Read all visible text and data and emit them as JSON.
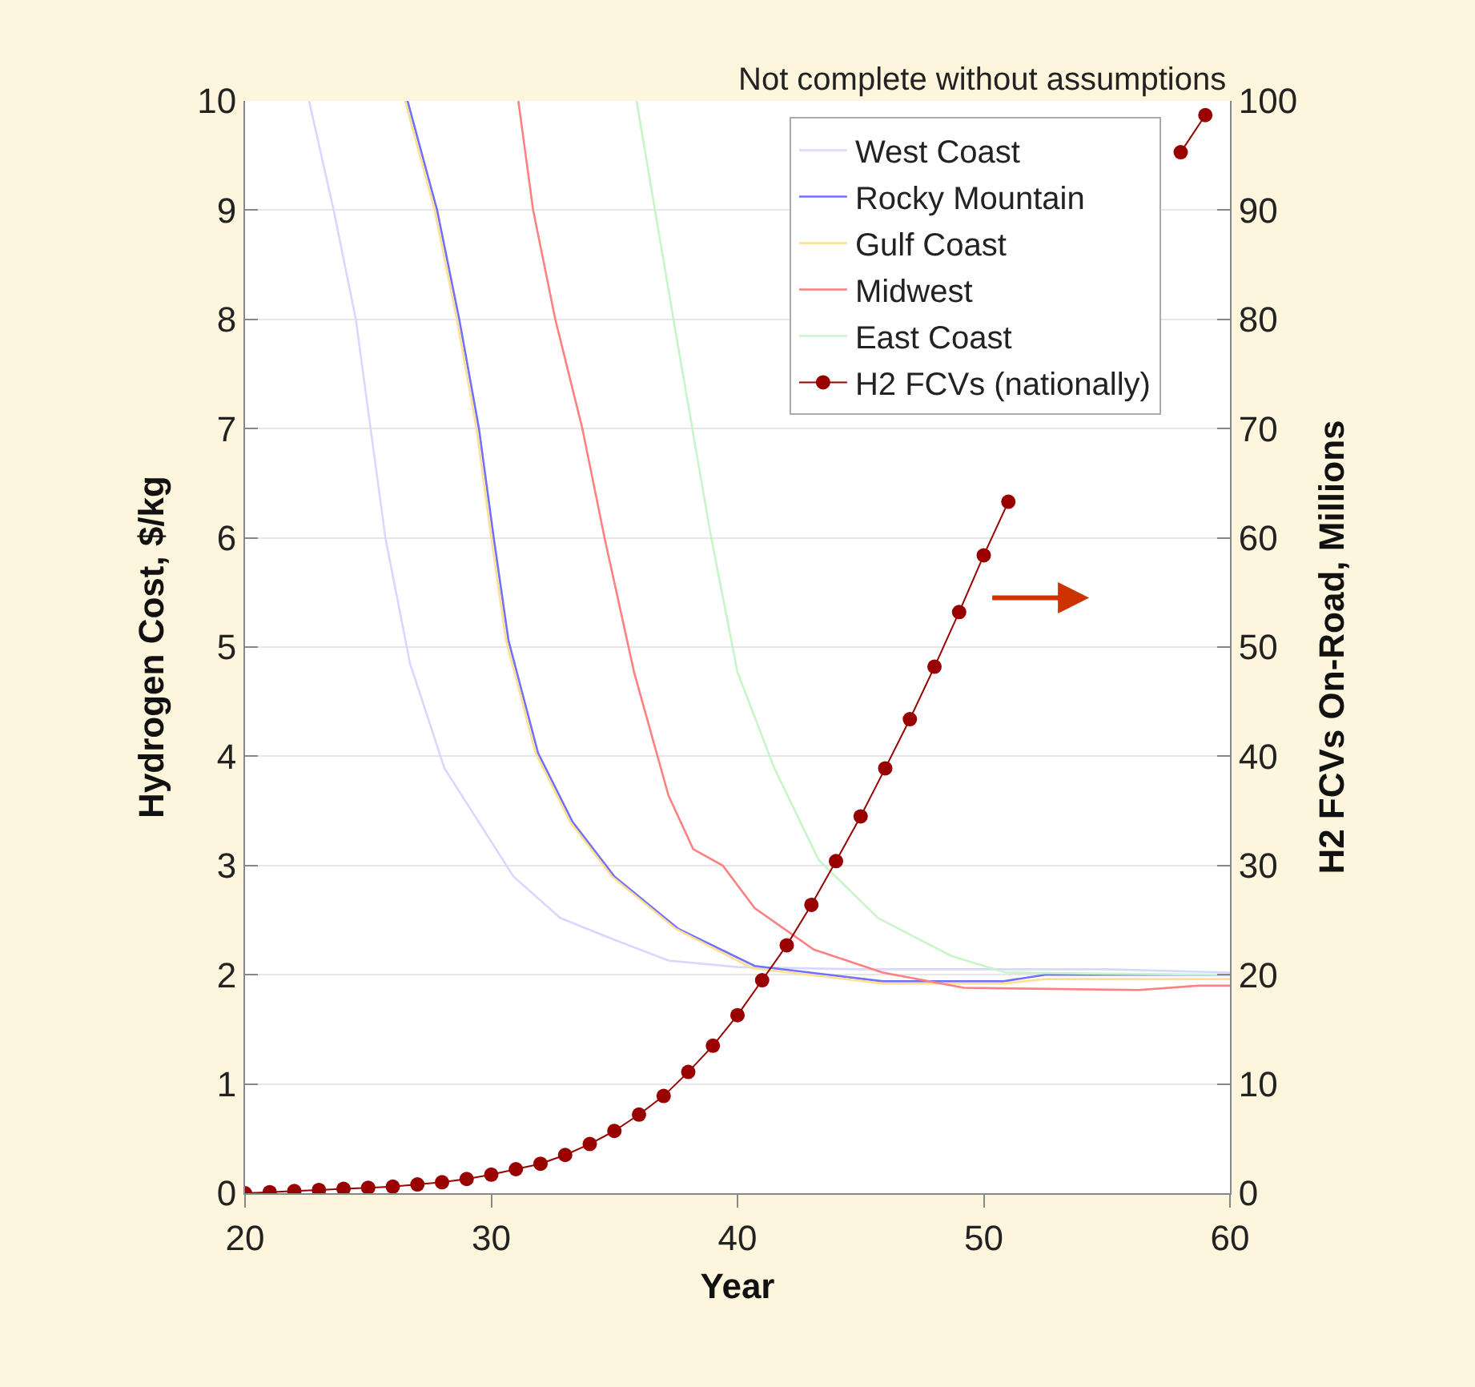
{
  "chart_data": {
    "type": "line",
    "xlabel": "Year",
    "ylabel": "Hydrogen Cost, $/kg",
    "y2label": "H2 FCVs On-Road, Millions",
    "annotations": [
      "Not complete without assumptions"
    ],
    "xlim": [
      20,
      60
    ],
    "xticks": [
      20,
      30,
      40,
      50,
      60
    ],
    "ylim": [
      0,
      10
    ],
    "yticks": [
      0,
      1,
      2,
      3,
      4,
      5,
      6,
      7,
      8,
      9,
      10
    ],
    "y2lim": [
      0,
      100
    ],
    "y2ticks": [
      0,
      10,
      20,
      30,
      40,
      50,
      60,
      70,
      80,
      90,
      100
    ],
    "grid": "y",
    "legend": "top right",
    "line_style": "solid",
    "series": [
      {
        "name": "West Coast",
        "color": "#d8d8ff",
        "marker": "none",
        "x": [
          22.6,
          23.6,
          24.5,
          25.1,
          25.7,
          26.7,
          28.1,
          30.9,
          32.8,
          35.0,
          37.2,
          40.0,
          45,
          50,
          55,
          60
        ],
        "values": [
          10,
          9,
          8,
          7,
          6,
          4.85,
          3.89,
          2.9,
          2.52,
          2.32,
          2.13,
          2.07,
          2.05,
          2.05,
          2.05,
          2.02
        ]
      },
      {
        "name": "Rocky Mountain",
        "color": "#7070ff",
        "marker": "none",
        "x": [
          26.6,
          27.8,
          28.7,
          29.5,
          30.1,
          30.7,
          31.9,
          33.3,
          35.0,
          37.6,
          40.7,
          45.9,
          50.8,
          52.5,
          60
        ],
        "values": [
          10,
          9,
          8,
          7,
          6,
          5.06,
          4.03,
          3.4,
          2.9,
          2.42,
          2.08,
          1.94,
          1.94,
          2.0,
          2.0
        ]
      },
      {
        "name": "Gulf Coast",
        "color": "#ffdf90",
        "marker": "none",
        "x": [
          26.5,
          27.7,
          28.6,
          29.4,
          30.0,
          30.6,
          31.8,
          33.2,
          34.9,
          37.5,
          40.6,
          45.9,
          50.8,
          52.5,
          60
        ],
        "values": [
          10,
          9,
          8,
          7,
          6,
          5.06,
          4.03,
          3.4,
          2.9,
          2.42,
          2.06,
          1.92,
          1.92,
          1.96,
          1.96
        ]
      },
      {
        "name": "Midwest",
        "color": "#ff8080",
        "marker": "none",
        "x": [
          31.1,
          31.7,
          32.6,
          33.7,
          34.6,
          35.8,
          37.2,
          38.2,
          39.4,
          40.7,
          43.1,
          45.9,
          49.2,
          56.3,
          58.7,
          60
        ],
        "values": [
          10,
          9,
          8,
          7,
          6,
          4.77,
          3.64,
          3.15,
          3.0,
          2.61,
          2.23,
          2.02,
          1.88,
          1.86,
          1.9,
          1.9
        ]
      },
      {
        "name": "East Coast",
        "color": "#c8f5c8",
        "marker": "none",
        "x": [
          35.9,
          37.4,
          38.9,
          40.0,
          41.5,
          43.3,
          45.7,
          48.7,
          50.9,
          55,
          60
        ],
        "values": [
          10,
          8,
          6.04,
          4.77,
          3.89,
          3.05,
          2.52,
          2.17,
          2.02,
          2.01,
          2.0
        ]
      },
      {
        "name": "H2 FCVs (nationally)",
        "color": "#990000",
        "marker": "circle",
        "axis": "y2",
        "x": [
          20,
          21,
          22,
          23,
          24,
          25,
          26,
          27,
          28,
          29,
          30,
          31,
          32,
          33,
          34,
          35,
          36,
          37,
          38,
          39,
          40,
          41,
          42,
          43,
          44,
          45,
          46,
          47,
          48,
          49,
          50,
          51,
          52,
          53,
          54,
          55,
          56,
          57,
          58,
          59
        ],
        "values": [
          0,
          0.1,
          0.2,
          0.3,
          0.4,
          0.5,
          0.6,
          0.8,
          1.0,
          1.3,
          1.7,
          2.2,
          2.7,
          3.5,
          4.5,
          5.7,
          7.2,
          8.9,
          11.1,
          13.5,
          16.3,
          19.5,
          22.7,
          26.4,
          30.4,
          34.5,
          38.9,
          43.4,
          48.2,
          53.2,
          58.4,
          63.3,
          null,
          null,
          null,
          null,
          null,
          null,
          95.3,
          98.7
        ]
      }
    ]
  }
}
